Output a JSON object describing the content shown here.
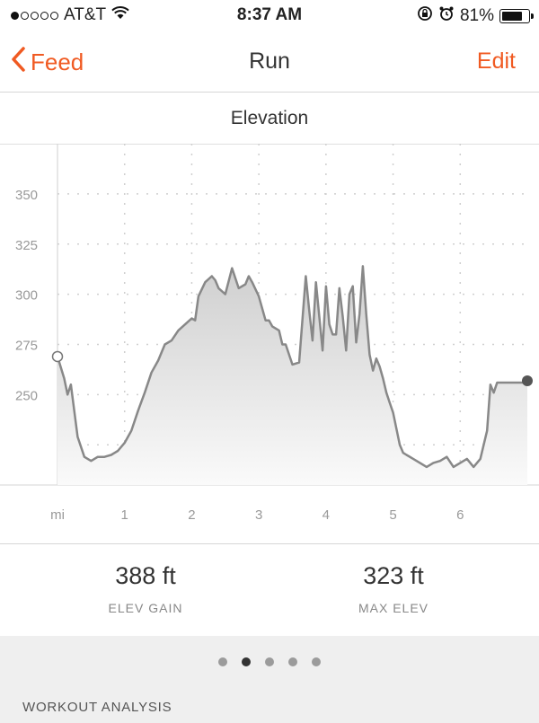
{
  "status": {
    "carrier": "AT&T",
    "time": "8:37 AM",
    "battery": "81%",
    "battery_level": 0.81
  },
  "nav": {
    "back_label": "Feed",
    "title": "Run",
    "edit_label": "Edit"
  },
  "section": {
    "title": "Elevation"
  },
  "chart_data": {
    "type": "area",
    "xlabel": "mi",
    "ylabel": "",
    "xlim": [
      0,
      7.0
    ],
    "ylim": [
      205,
      375
    ],
    "yticks": [
      250,
      275,
      300,
      325,
      350
    ],
    "xticks": [
      1,
      2,
      3,
      4,
      5,
      6
    ],
    "grid": true,
    "series": [
      {
        "x": [
          0,
          0.1,
          0.15,
          0.2,
          0.3,
          0.4,
          0.5,
          0.6,
          0.7,
          0.8,
          0.9,
          1.0,
          1.1,
          1.2,
          1.3,
          1.4,
          1.5,
          1.6,
          1.7,
          1.8,
          1.9,
          2.0,
          2.05,
          2.1,
          2.2,
          2.3,
          2.35,
          2.4,
          2.5,
          2.6,
          2.7,
          2.8,
          2.85,
          2.9,
          3.0,
          3.1,
          3.15,
          3.2,
          3.3,
          3.35,
          3.4,
          3.5,
          3.6,
          3.7,
          3.75,
          3.8,
          3.85,
          3.9,
          3.95,
          4.0,
          4.05,
          4.1,
          4.15,
          4.2,
          4.25,
          4.3,
          4.35,
          4.4,
          4.45,
          4.5,
          4.55,
          4.6,
          4.65,
          4.7,
          4.75,
          4.8,
          4.85,
          4.9,
          4.95,
          5.0,
          5.05,
          5.1,
          5.15,
          5.2,
          5.3,
          5.4,
          5.5,
          5.6,
          5.7,
          5.8,
          5.9,
          6.0,
          6.1,
          6.2,
          6.3,
          6.4,
          6.45,
          6.5,
          6.55,
          6.6,
          6.7,
          6.8,
          6.85,
          6.9,
          6.95,
          7.0
        ],
        "y": [
          269,
          258,
          250,
          255,
          229,
          219,
          217,
          219,
          219,
          220,
          222,
          226,
          232,
          242,
          251,
          261,
          267,
          275,
          277,
          282,
          285,
          288,
          287,
          299,
          306,
          309,
          307,
          303,
          300,
          313,
          303,
          305,
          309,
          306,
          299,
          287,
          287,
          284,
          282,
          275,
          275,
          265,
          266,
          309,
          292,
          277,
          306,
          289,
          272,
          304,
          285,
          280,
          280,
          303,
          289,
          272,
          300,
          304,
          276,
          290,
          314,
          290,
          270,
          262,
          268,
          264,
          258,
          251,
          246,
          241,
          233,
          225,
          221,
          220,
          218,
          216,
          214,
          216,
          217,
          219,
          214,
          216,
          218,
          214,
          218,
          232,
          255,
          251,
          256,
          256,
          256,
          256,
          256,
          256,
          256,
          256
        ]
      }
    ]
  },
  "stats": [
    {
      "value": "388 ft",
      "label": "ELEV GAIN"
    },
    {
      "value": "323 ft",
      "label": "MAX ELEV"
    }
  ],
  "pager": {
    "count": 5,
    "active": 1
  },
  "footer": {
    "section_label": "WORKOUT ANALYSIS"
  },
  "colors": {
    "accent": "#f05a22",
    "line": "#888888"
  }
}
